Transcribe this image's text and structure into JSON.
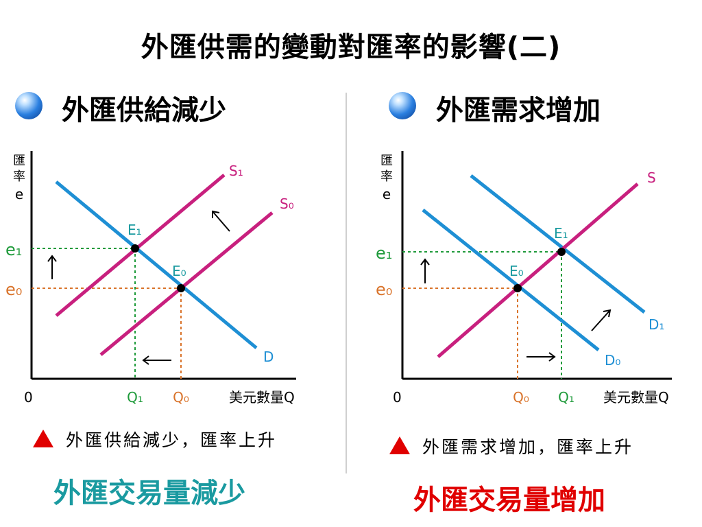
{
  "title": "外匯供需的變動對匯率的影響(二)",
  "colors": {
    "supply": "#c8207e",
    "demand": "#1e8fd4",
    "green": "#1e9a3a",
    "orange": "#d9732a",
    "teal": "#1a9aa0",
    "red": "#e00000"
  },
  "left": {
    "heading": "外匯供給減少",
    "y_axis_label": [
      "匯",
      "率",
      "e"
    ],
    "origin": "0",
    "x_axis_label": "美元數量Q",
    "curves": {
      "s1": "S₁",
      "s0": "S₀",
      "d": "D"
    },
    "points": {
      "e1": "E₁",
      "e0": "E₀"
    },
    "y_ticks": {
      "e1": "e₁",
      "e0": "e₀"
    },
    "x_ticks": {
      "q1": "Q₁",
      "q0": "Q₀"
    },
    "note": "外匯供給減少，匯率上升",
    "result": "外匯交易量減少"
  },
  "right": {
    "heading": "外匯需求增加",
    "y_axis_label": [
      "匯",
      "率",
      "e"
    ],
    "origin": "0",
    "x_axis_label": "美元數量Q",
    "curves": {
      "s": "S",
      "d1": "D₁",
      "d0": "D₀"
    },
    "points": {
      "e1": "E₁",
      "e0": "E₀"
    },
    "y_ticks": {
      "e1": "e₁",
      "e0": "e₀"
    },
    "x_ticks": {
      "q0": "Q₀",
      "q1": "Q₁"
    },
    "note": "外匯需求增加，匯率上升",
    "result": "外匯交易量增加"
  }
}
